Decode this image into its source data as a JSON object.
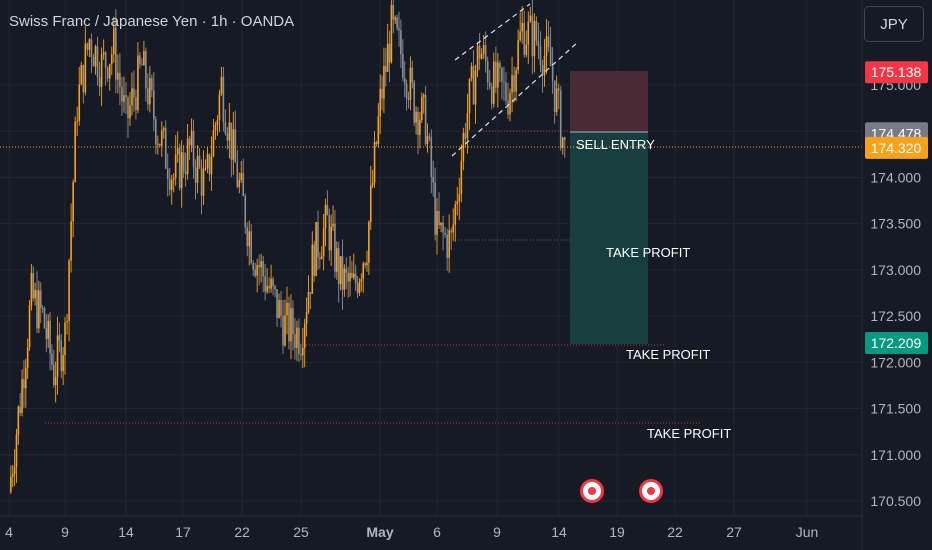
{
  "header": {
    "title": "Swiss Franc / Japanese Yen · 1h · OANDA",
    "currency_button": "JPY"
  },
  "colors": {
    "background": "#161a25",
    "grid": "#222631",
    "up_candle": "#f7a21b",
    "down_candle": "#8e9199",
    "entry_line": "#f7a21b",
    "stop_box": "#4a2a35",
    "profit_box": "#173f3f",
    "target_line": "#a0424a",
    "price_red": "#f23645",
    "price_gray": "#787b86",
    "price_orange": "#f7a21b",
    "price_teal": "#089981",
    "axis_text": "#b2b5be"
  },
  "chart_data": {
    "type": "candlestick",
    "title": "Swiss Franc / Japanese Yen · 1h · OANDA",
    "symbol": "CHFJPY",
    "timeframe": "1h",
    "source": "OANDA",
    "x_ticks": [
      "4",
      "9",
      "14",
      "17",
      "22",
      "25",
      "May",
      "6",
      "9",
      "14",
      "19",
      "22",
      "27",
      "Jun"
    ],
    "y_ticks": [
      170.5,
      171.0,
      171.5,
      172.0,
      172.5,
      173.0,
      173.5,
      174.0,
      174.5,
      175.0
    ],
    "y_tick_labels": [
      "170.500",
      "171.000",
      "171.500",
      "172.000",
      "172.500",
      "173.000",
      "173.500",
      "174.000",
      "",
      "175.000"
    ],
    "ylim": [
      170.35,
      175.9
    ],
    "price_path": [
      {
        "x": "Apr 4",
        "y": 170.6
      },
      {
        "x": "Apr 5",
        "y": 171.6
      },
      {
        "x": "Apr 6",
        "y": 172.7
      },
      {
        "x": "Apr 7",
        "y": 172.5
      },
      {
        "x": "Apr 8",
        "y": 171.9
      },
      {
        "x": "Apr 9",
        "y": 172.3
      },
      {
        "x": "Apr 10",
        "y": 174.8
      },
      {
        "x": "Apr 11",
        "y": 175.5
      },
      {
        "x": "Apr 12",
        "y": 175.2
      },
      {
        "x": "Apr 13",
        "y": 175.4
      },
      {
        "x": "Apr 14",
        "y": 174.6
      },
      {
        "x": "Apr 15",
        "y": 175.2
      },
      {
        "x": "Apr 16",
        "y": 174.5
      },
      {
        "x": "Apr 17",
        "y": 174.0
      },
      {
        "x": "Apr 18",
        "y": 174.3
      },
      {
        "x": "Apr 19",
        "y": 173.9
      },
      {
        "x": "Apr 20",
        "y": 175.0
      },
      {
        "x": "Apr 21",
        "y": 174.0
      },
      {
        "x": "Apr 22",
        "y": 173.2
      },
      {
        "x": "Apr 23",
        "y": 172.8
      },
      {
        "x": "Apr 24",
        "y": 172.4
      },
      {
        "x": "Apr 25",
        "y": 172.3
      },
      {
        "x": "Apr 26",
        "y": 173.2
      },
      {
        "x": "Apr 27",
        "y": 173.5
      },
      {
        "x": "Apr 28",
        "y": 172.9
      },
      {
        "x": "Apr 29",
        "y": 172.8
      },
      {
        "x": "Apr 30",
        "y": 173.3
      },
      {
        "x": "May 1",
        "y": 174.8
      },
      {
        "x": "May 2",
        "y": 175.6
      },
      {
        "x": "May 3",
        "y": 175.3
      },
      {
        "x": "May 4",
        "y": 174.8
      },
      {
        "x": "May 5",
        "y": 174.6
      },
      {
        "x": "May 6",
        "y": 173.4
      },
      {
        "x": "May 7",
        "y": 173.3
      },
      {
        "x": "May 8",
        "y": 174.6
      },
      {
        "x": "May 9",
        "y": 175.4
      },
      {
        "x": "May 10",
        "y": 175.0
      },
      {
        "x": "May 11",
        "y": 174.9
      },
      {
        "x": "May 12",
        "y": 175.6
      },
      {
        "x": "May 13",
        "y": 175.5
      },
      {
        "x": "May 14",
        "y": 175.2
      },
      {
        "x": "May 15",
        "y": 174.3
      }
    ],
    "trade_setup": {
      "direction": "sell",
      "stop_loss": 175.138,
      "entry": 174.478,
      "current_price": 174.32,
      "targets": [
        173.3,
        172.209,
        171.35
      ],
      "entry_label": "SELL ENTRY",
      "target_label": "TAKE PROFIT"
    },
    "price_labels": [
      {
        "value": "175.138",
        "color": "#f23645"
      },
      {
        "value": "174.478",
        "color": "#787b86"
      },
      {
        "value": "174.320",
        "color": "#f7a21b"
      },
      {
        "value": "172.209",
        "color": "#089981"
      }
    ],
    "channel_lines": "two dashed parallel white trendlines over May 6 – May 15",
    "event_markers": 2,
    "grid": true
  }
}
